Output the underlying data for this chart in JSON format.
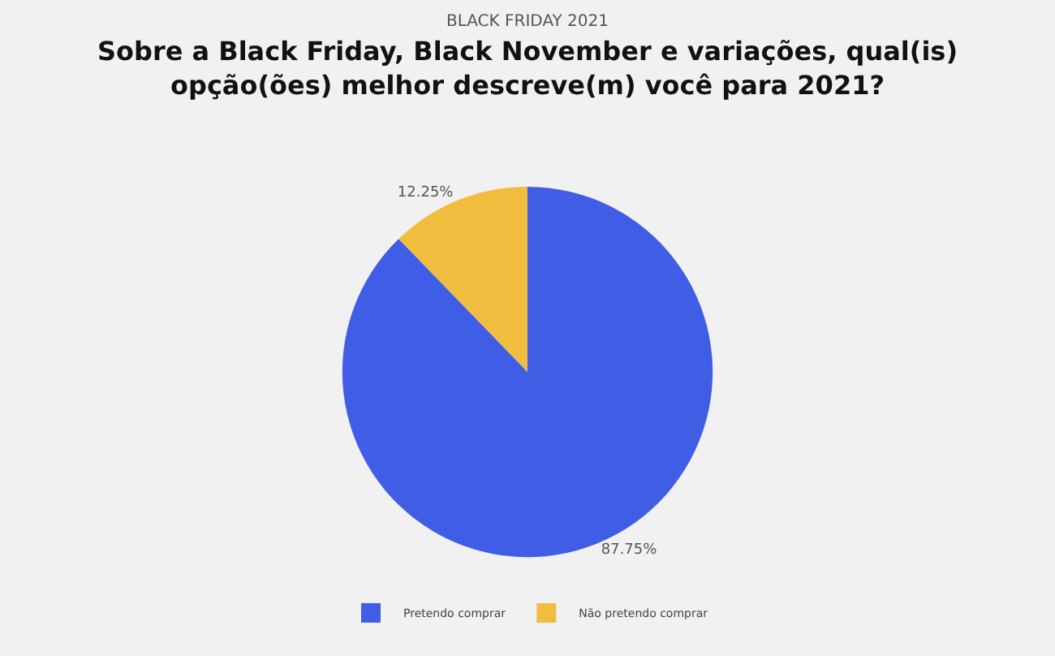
{
  "chart_data": {
    "type": "pie",
    "subtitle": "BLACK FRIDAY 2021",
    "title": "Sobre a Black Friday, Black November e variações, qual(is) opção(ões) melhor descreve(m) você para 2021?",
    "categories": [
      "Pretendo comprar",
      "Não pretendo comprar"
    ],
    "values": [
      87.75,
      12.25
    ],
    "value_labels": [
      "87.75%",
      "12.25%"
    ],
    "colors": [
      "#405de6",
      "#f0bd3f"
    ],
    "legend": "bottom"
  }
}
